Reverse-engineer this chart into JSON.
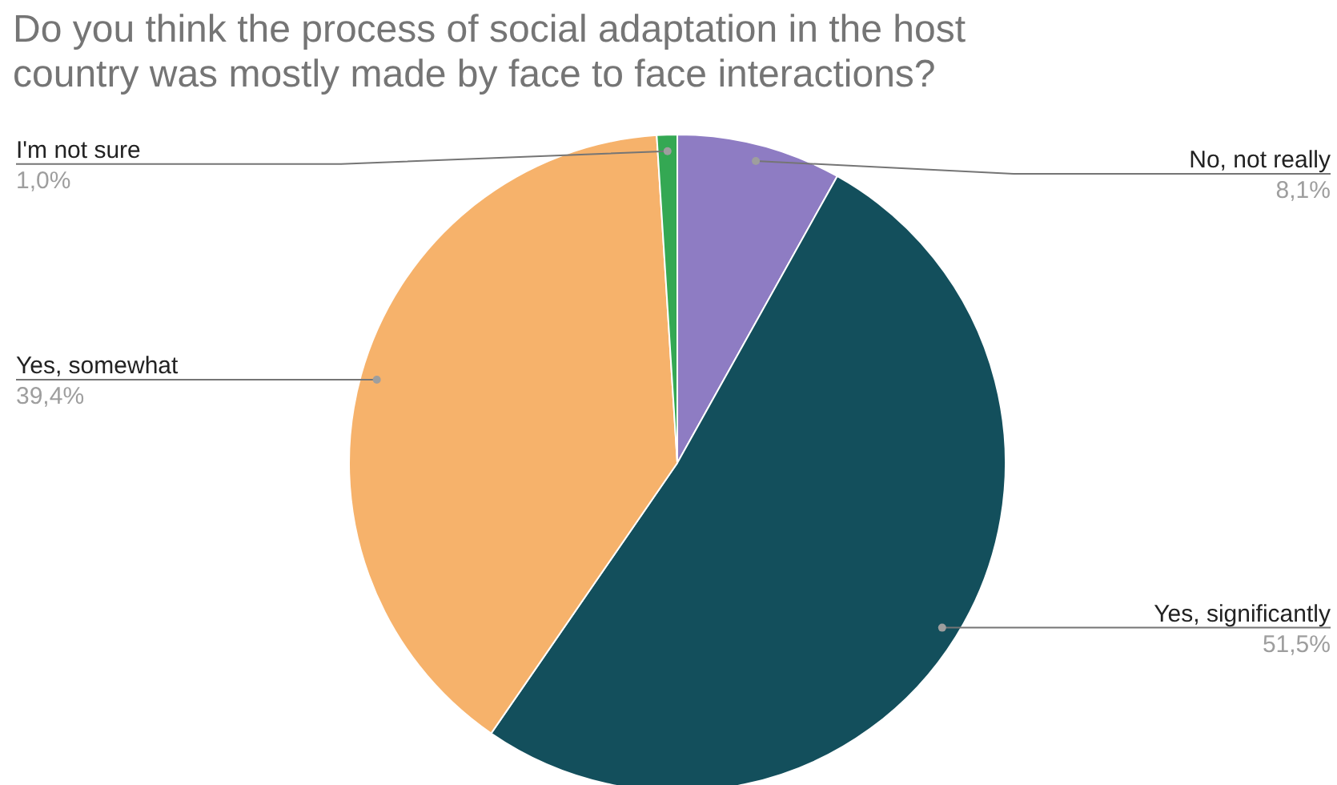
{
  "chart_data": {
    "type": "pie",
    "title": "Do you think the process of social adaptation in the host country was mostly made by face to face interactions?",
    "categories": [
      "No, not really",
      "Yes, significantly",
      "Yes, somewhat",
      "I'm not sure"
    ],
    "values": [
      8.1,
      51.5,
      39.4,
      1.0
    ],
    "value_labels": [
      "8,1%",
      "51,5%",
      "39,4%",
      "1,0%"
    ],
    "colors": [
      "#8e7cc3",
      "#134f5c",
      "#f6b26b",
      "#34a853"
    ]
  }
}
